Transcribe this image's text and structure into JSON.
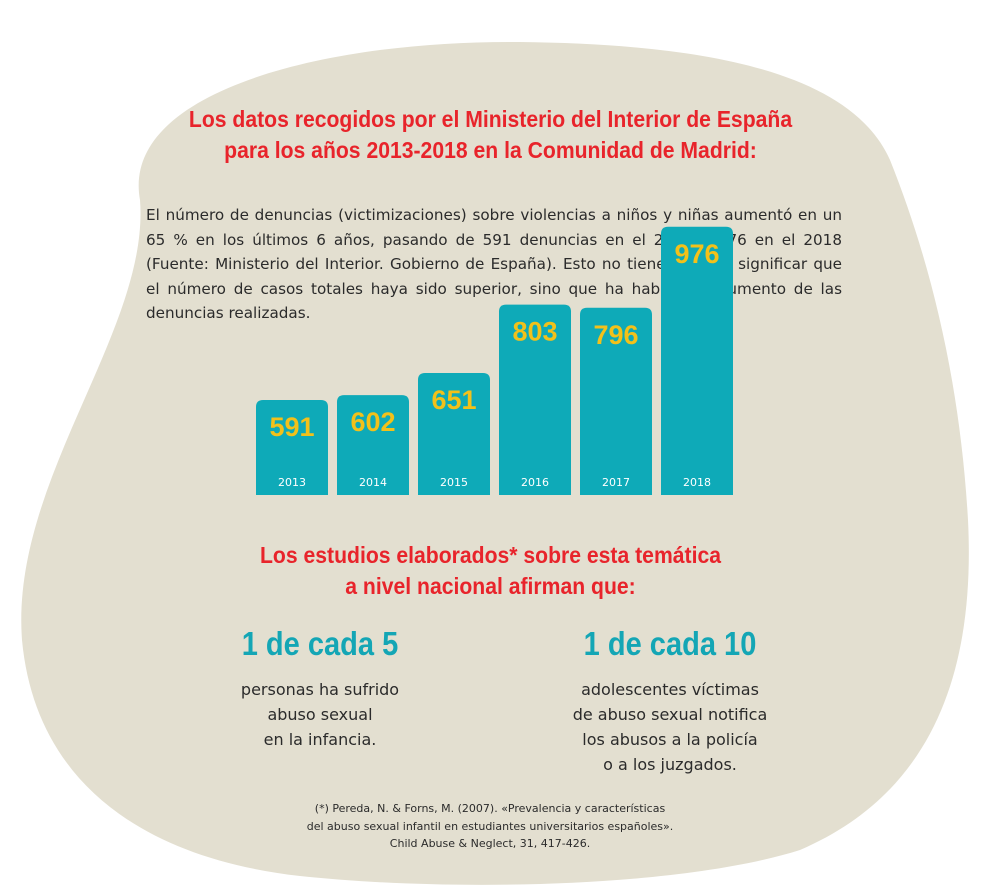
{
  "colors": {
    "background": "#e3dfd0",
    "heading": "#e8242b",
    "bar": "#0eaab8",
    "bar_value": "#f2c11a",
    "bar_year": "#ffffff",
    "stat": "#14a6b5"
  },
  "heading1": {
    "line1": "Los datos recogidos por el Ministerio del Interior de España",
    "line2": "para los años 2013-2018 en la Comunidad de Madrid:"
  },
  "intro": "El número de denuncias (victimizaciones) sobre violencias a niños y niñas aumentó en un 65 % en los últimos 6 años, pasando de 591 denuncias en el 2013 a 976 en el 2018 (Fuente: Ministerio del Interior. Gobierno de España). Esto no tiene por qué significar que el número de casos totales haya sido superior, sino que ha habido un aumento de las denuncias realizadas.",
  "chart_data": {
    "type": "bar",
    "categories": [
      "2013",
      "2014",
      "2015",
      "2016",
      "2017",
      "2018"
    ],
    "values": [
      591,
      602,
      651,
      803,
      796,
      976
    ],
    "title": "",
    "xlabel": "",
    "ylabel": "",
    "data_labels": true,
    "grid": false
  },
  "heading2": {
    "line1": "Los estudios elaborados* sobre esta temática",
    "line2": "a nivel nacional afirman que:"
  },
  "stats": [
    {
      "big": "1 de cada 5",
      "lines": [
        "personas ha sufrido",
        "abuso sexual",
        "en la infancia."
      ]
    },
    {
      "big": "1 de cada 10",
      "lines": [
        "adolescentes víctimas",
        "de abuso sexual notifica",
        "los abusos a la policía",
        "o a los juzgados."
      ]
    }
  ],
  "reference": {
    "line1": "(*) Pereda, N. & Forns, M. (2007). «Prevalencia y características",
    "line2": "del abuso sexual infantil en estudiantes universitarios españoles».",
    "line3": "Child Abuse & Neglect, 31, 417-426."
  }
}
